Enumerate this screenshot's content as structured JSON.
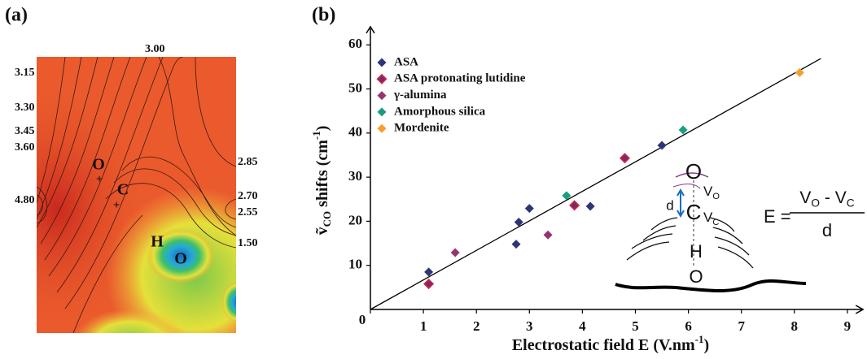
{
  "chart_data": [
    {
      "type": "contour",
      "panel_label": "(a)",
      "contour_levels": [
        {
          "value": 3,
          "label": "3.00"
        },
        {
          "value": 3.15,
          "label": "3.15"
        },
        {
          "value": 3.3,
          "label": "3.30"
        },
        {
          "value": 3.45,
          "label": "3.45"
        },
        {
          "value": 3.6,
          "label": "3.60"
        },
        {
          "value": 4.8,
          "label": "4.80"
        },
        {
          "value": 2.85,
          "label": "2.85"
        },
        {
          "value": 2.7,
          "label": "2.70"
        },
        {
          "value": 2.55,
          "label": "2.55"
        },
        {
          "value": 1.5,
          "label": "1.50"
        }
      ],
      "atoms": [
        "O",
        "C",
        "H",
        "O"
      ]
    },
    {
      "type": "scatter",
      "panel_label": "(b)",
      "x_label": [
        {
          "text": "Electrostatic field E (V.nm"
        },
        {
          "sup": "-1"
        },
        {
          "text": ")"
        }
      ],
      "y_label": [
        {
          "text": "ṽ"
        },
        {
          "sub": "CO"
        },
        {
          "text": " shifts (cm"
        },
        {
          "sup": "-1"
        },
        {
          "text": ")"
        }
      ],
      "xlim": [
        0,
        9.25
      ],
      "ylim": [
        0,
        63
      ],
      "xticks": [
        0,
        1,
        2,
        3,
        4,
        5,
        6,
        7,
        8,
        9
      ],
      "yticks": [
        10,
        20,
        30,
        40,
        50,
        60
      ],
      "series": [
        {
          "name": "ASA",
          "color": "#2d3577",
          "x": [
            1.1,
            2.75,
            2.8,
            3.0,
            4.15,
            5.5
          ],
          "values": [
            8.5,
            14.8,
            19.8,
            22.9,
            23.4,
            37.2
          ]
        },
        {
          "name": "ASA protonating lutidine",
          "color": "#7a2a6a",
          "edgecolor": "#d8283c",
          "x": [
            1.1,
            3.85,
            4.8
          ],
          "values": [
            5.8,
            23.6,
            34.3
          ]
        },
        {
          "name": "γ-alumina",
          "color": "#963472",
          "x": [
            1.6,
            3.35
          ],
          "values": [
            12.9,
            16.9
          ]
        },
        {
          "name": "Amorphous silica",
          "color": "#18a07e",
          "x": [
            3.7,
            5.9
          ],
          "values": [
            25.8,
            40.7
          ]
        },
        {
          "name": "Mordenite",
          "color": "#f5a02c",
          "x": [
            8.1
          ],
          "values": [
            53.7
          ]
        }
      ],
      "fit": {
        "x": [
          0,
          8.5
        ],
        "values": [
          0,
          56.9
        ],
        "color": "#000000"
      },
      "inset": {
        "atoms": [
          "O",
          "C",
          "H",
          "O"
        ],
        "distance": "d",
        "v_o": [
          {
            "text": "V"
          },
          {
            "sub": "O"
          }
        ],
        "v_c": [
          {
            "text": "V"
          },
          {
            "sub": "C"
          }
        ],
        "equation_lhs": "E =",
        "numerator": [
          {
            "text": "V"
          },
          {
            "sub": "O"
          },
          {
            "text": " - V"
          },
          {
            "sub": "C"
          }
        ],
        "denominator": "d"
      }
    }
  ]
}
